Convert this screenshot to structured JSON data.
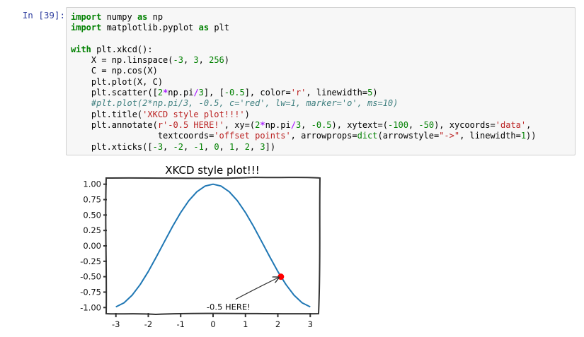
{
  "cell": {
    "prompt": "In [39]:",
    "code": {
      "l1": {
        "kw1": "import",
        "t1": " numpy ",
        "kw2": "as",
        "t2": " np"
      },
      "l2": {
        "kw1": "import",
        "t1": " matplotlib.pyplot ",
        "kw2": "as",
        "t2": " plt"
      },
      "l4": {
        "kw": "with",
        "t": " plt.xkcd():"
      },
      "l5": {
        "a": "    X = np.linspace(",
        "n1": "-3",
        "b": ", ",
        "n2": "3",
        "c": ", ",
        "n3": "256",
        "d": ")"
      },
      "l6": "    C = np.cos(X)",
      "l7": "    plt.plot(X, C)",
      "l8": {
        "a": "    plt.scatter([",
        "n1": "2",
        "op1": "*",
        "b": "np.pi",
        "op2": "/",
        "n2": "3",
        "c": "], [",
        "n3": "-0.5",
        "d": "], color=",
        "s1": "'r'",
        "e": ", linewidth=",
        "n4": "5",
        "f": ")"
      },
      "l9": "    #plt.plot(2*np.pi/3, -0.5, c='red', lw=1, marker='o', ms=10)",
      "l10": {
        "a": "    plt.title(",
        "s": "'XKCD style plot!!!'",
        "b": ")"
      },
      "l11": {
        "a": "    plt.annotate(",
        "s1": "r'-0.5 HERE!'",
        "b": ", xy=(",
        "n1": "2",
        "op1": "*",
        "c": "np.pi",
        "op2": "/",
        "n2": "3",
        "d": ", ",
        "n3": "-0.5",
        "e": "), xytext=(",
        "n4": "-100",
        "f": ", ",
        "n5": "-50",
        "g": "), xycoords=",
        "s2": "'data'",
        "h": ","
      },
      "l12": {
        "a": "                 textcoords=",
        "s1": "'offset points'",
        "b": ", arrowprops=",
        "bi": "dict",
        "c": "(arrowstyle=",
        "s2": "\"->\"",
        "d": ", linewidth=",
        "n1": "1",
        "e": "))"
      },
      "l13": {
        "a": "    plt.xticks([",
        "n1": "-3",
        "b": ", ",
        "n2": "-2",
        "c": ", ",
        "n3": "-1",
        "d": ", ",
        "n4": "0",
        "e": ", ",
        "n5": "1",
        "f": ", ",
        "n6": "2",
        "g": ", ",
        "n7": "3",
        "h": "])"
      }
    }
  },
  "chart_data": {
    "type": "line",
    "title": "XKCD style plot!!!",
    "xlabel": "",
    "ylabel": "",
    "xlim": [
      -3.3,
      3.3
    ],
    "ylim": [
      -1.1,
      1.1
    ],
    "xticks": [
      -3,
      -2,
      -1,
      0,
      1,
      2,
      3
    ],
    "yticks": [
      1.0,
      0.75,
      0.5,
      0.25,
      0.0,
      -0.25,
      -0.5,
      -0.75,
      -1.0
    ],
    "ytick_labels": [
      "1.00",
      "0.75",
      "0.50",
      "0.25",
      "0.00",
      "-0.25",
      "-0.50",
      "-0.75",
      "-1.00"
    ],
    "series": [
      {
        "function": "cos(x)",
        "x": [
          -3.0,
          -2.75,
          -2.5,
          -2.25,
          -2.0,
          -1.75,
          -1.5,
          -1.25,
          -1.0,
          -0.75,
          -0.5,
          -0.25,
          0.0,
          0.25,
          0.5,
          0.75,
          1.0,
          1.25,
          1.5,
          1.75,
          2.0,
          2.25,
          2.5,
          2.75,
          3.0
        ],
        "y": [
          -0.99,
          -0.924,
          -0.801,
          -0.628,
          -0.416,
          -0.178,
          0.071,
          0.315,
          0.54,
          0.732,
          0.878,
          0.969,
          1.0,
          0.969,
          0.878,
          0.732,
          0.54,
          0.315,
          0.071,
          -0.178,
          -0.416,
          -0.628,
          -0.801,
          -0.924,
          -0.99
        ],
        "color": "#1f77b4"
      }
    ],
    "scatter": [
      {
        "x": 2.094,
        "y": -0.5,
        "color": "#ff0000"
      }
    ],
    "annotation": {
      "text": "-0.5 HERE!",
      "xy": [
        2.094,
        -0.5
      ]
    },
    "grid": false,
    "style": "xkcd"
  }
}
